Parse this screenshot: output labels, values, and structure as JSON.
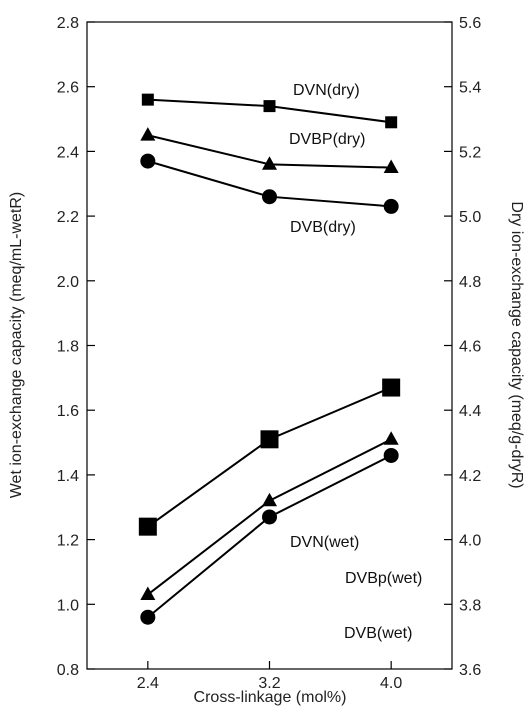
{
  "chart_data": {
    "type": "line",
    "title": "",
    "xlabel": "Cross-linkage (mol%)",
    "ylabel_left": "Wet ion-exchange capacity (meq/mL-wetR)",
    "ylabel_right": "Dry ion-exchange capacity (meq/g-dryR)",
    "categories": [
      "2.4",
      "3.2",
      "4.0"
    ],
    "x": [
      2.4,
      3.2,
      4.0
    ],
    "xlim": [
      2.0,
      4.4
    ],
    "ylim_left": [
      0.8,
      2.8
    ],
    "ylim_right": [
      3.6,
      5.6
    ],
    "yticks_left": [
      "0.8",
      "1.0",
      "1.2",
      "1.4",
      "1.6",
      "1.8",
      "2.0",
      "2.2",
      "2.4",
      "2.6",
      "2.8"
    ],
    "yticks_right": [
      "3.6",
      "3.8",
      "4.0",
      "4.2",
      "4.4",
      "4.6",
      "4.8",
      "5.0",
      "5.2",
      "5.4",
      "5.6"
    ],
    "grid": false,
    "series": [
      {
        "name": "DVN(dry)",
        "axis": "right",
        "marker": "square-small",
        "values": [
          5.36,
          5.34,
          5.29
        ]
      },
      {
        "name": "DVBP(dry)",
        "axis": "right",
        "marker": "triangle",
        "values": [
          5.25,
          5.16,
          5.15
        ]
      },
      {
        "name": "DVB(dry)",
        "axis": "right",
        "marker": "circle",
        "values": [
          5.17,
          5.06,
          5.03
        ]
      },
      {
        "name": "DVN(wet)",
        "axis": "left",
        "marker": "square-large",
        "values": [
          1.24,
          1.51,
          1.67
        ]
      },
      {
        "name": "DVBp(wet)",
        "axis": "left",
        "marker": "triangle",
        "values": [
          1.03,
          1.32,
          1.51
        ]
      },
      {
        "name": "DVB(wet)",
        "axis": "left",
        "marker": "circle",
        "values": [
          0.96,
          1.27,
          1.46
        ]
      }
    ]
  }
}
